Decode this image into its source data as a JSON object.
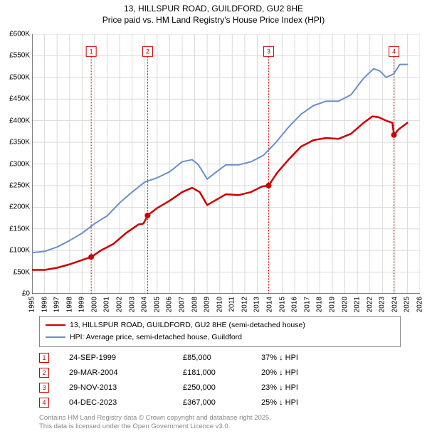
{
  "chart": {
    "type": "line",
    "title_line1": "13, HILLSPUR ROAD, GUILDFORD, GU2 8HE",
    "title_line2": "Price paid vs. HM Land Registry's House Price Index (HPI)",
    "title_fontsize": 12,
    "title_color": "#000000",
    "background_color": "#ffffff",
    "plot_bg": "#ffffff",
    "xlim": [
      1995,
      2026
    ],
    "ylim": [
      0,
      600000
    ],
    "xtick_step": 1,
    "ytick_step": 50000,
    "y_prefix": "£",
    "y_suffix": "K",
    "tick_fontsize": 10,
    "axis_color": "#000000",
    "grid_color": "#d9d9d9",
    "grid_width": 1,
    "series": [
      {
        "name": "price_paid",
        "label": "13, HILLSPUR ROAD, GUILDFORD, GU2 8HE (semi-detached house)",
        "color": "#cc0000",
        "width": 2.5,
        "data": [
          [
            1995.0,
            55000
          ],
          [
            1996.0,
            55000
          ],
          [
            1997.0,
            60000
          ],
          [
            1998.0,
            68000
          ],
          [
            1999.0,
            78000
          ],
          [
            1999.73,
            85000
          ],
          [
            2000.5,
            100000
          ],
          [
            2001.5,
            115000
          ],
          [
            2002.5,
            140000
          ],
          [
            2003.5,
            160000
          ],
          [
            2003.9,
            162000
          ],
          [
            2004.05,
            170000
          ],
          [
            2004.24,
            181000
          ],
          [
            2005.0,
            198000
          ],
          [
            2006.0,
            215000
          ],
          [
            2007.0,
            235000
          ],
          [
            2007.8,
            245000
          ],
          [
            2008.4,
            235000
          ],
          [
            2009.0,
            205000
          ],
          [
            2009.6,
            215000
          ],
          [
            2010.5,
            230000
          ],
          [
            2011.5,
            228000
          ],
          [
            2012.5,
            235000
          ],
          [
            2013.4,
            248000
          ],
          [
            2013.91,
            250000
          ],
          [
            2014.6,
            280000
          ],
          [
            2015.5,
            310000
          ],
          [
            2016.5,
            340000
          ],
          [
            2017.5,
            355000
          ],
          [
            2018.5,
            360000
          ],
          [
            2019.5,
            358000
          ],
          [
            2020.5,
            370000
          ],
          [
            2021.5,
            395000
          ],
          [
            2022.2,
            410000
          ],
          [
            2022.7,
            408000
          ],
          [
            2023.3,
            400000
          ],
          [
            2023.8,
            395000
          ],
          [
            2023.93,
            367000
          ],
          [
            2024.3,
            380000
          ],
          [
            2025.0,
            395000
          ]
        ]
      },
      {
        "name": "hpi",
        "label": "HPI: Average price, semi-detached house, Guildford",
        "color": "#6b8fc9",
        "width": 2,
        "data": [
          [
            1995.0,
            95000
          ],
          [
            1996.0,
            98000
          ],
          [
            1997.0,
            108000
          ],
          [
            1998.0,
            123000
          ],
          [
            1999.0,
            140000
          ],
          [
            2000.0,
            162000
          ],
          [
            2001.0,
            180000
          ],
          [
            2002.0,
            210000
          ],
          [
            2003.0,
            235000
          ],
          [
            2004.0,
            258000
          ],
          [
            2005.0,
            268000
          ],
          [
            2006.0,
            282000
          ],
          [
            2007.0,
            305000
          ],
          [
            2007.8,
            310000
          ],
          [
            2008.3,
            298000
          ],
          [
            2009.0,
            265000
          ],
          [
            2009.8,
            283000
          ],
          [
            2010.5,
            298000
          ],
          [
            2011.5,
            298000
          ],
          [
            2012.5,
            305000
          ],
          [
            2013.5,
            320000
          ],
          [
            2014.5,
            350000
          ],
          [
            2015.5,
            385000
          ],
          [
            2016.5,
            415000
          ],
          [
            2017.5,
            435000
          ],
          [
            2018.5,
            445000
          ],
          [
            2019.5,
            445000
          ],
          [
            2020.5,
            460000
          ],
          [
            2021.5,
            498000
          ],
          [
            2022.3,
            520000
          ],
          [
            2022.8,
            515000
          ],
          [
            2023.3,
            500000
          ],
          [
            2023.9,
            508000
          ],
          [
            2024.4,
            530000
          ],
          [
            2025.0,
            530000
          ]
        ]
      }
    ],
    "markers": [
      {
        "n": "1",
        "x": 1999.73,
        "y": 85000,
        "color": "#cc0000"
      },
      {
        "n": "2",
        "x": 2004.24,
        "y": 181000,
        "color": "#cc0000"
      },
      {
        "n": "3",
        "x": 2013.91,
        "y": 250000,
        "color": "#cc0000"
      },
      {
        "n": "4",
        "x": 2023.93,
        "y": 367000,
        "color": "#cc0000"
      }
    ],
    "marker_flag_y": 560000,
    "marker_box_size": 14,
    "marker_box_border": "#cc0000",
    "marker_box_bg": "#ffffff",
    "marker_line_color": "#cc0000",
    "marker_line_dash": "2,2",
    "marker_dot_radius": 4
  },
  "legend": {
    "border_color": "#888888",
    "bg": "#ffffff",
    "fontsize": 10.5,
    "items": [
      {
        "color": "#cc0000",
        "label": "13, HILLSPUR ROAD, GUILDFORD, GU2 8HE (semi-detached house)"
      },
      {
        "color": "#6b8fc9",
        "label": "HPI: Average price, semi-detached house, Guildford"
      }
    ]
  },
  "transactions": {
    "marker_border": "#cc0000",
    "marker_text_color": "#cc0000",
    "fontsize": 11,
    "rows": [
      {
        "n": "1",
        "date": "24-SEP-1999",
        "price": "£85,000",
        "diff": "37% ↓ HPI"
      },
      {
        "n": "2",
        "date": "29-MAR-2004",
        "price": "£181,000",
        "diff": "20% ↓ HPI"
      },
      {
        "n": "3",
        "date": "29-NOV-2013",
        "price": "£250,000",
        "diff": "23% ↓ HPI"
      },
      {
        "n": "4",
        "date": "04-DEC-2023",
        "price": "£367,000",
        "diff": "25% ↓ HPI"
      }
    ]
  },
  "attribution": {
    "color": "#888888",
    "fontsize": 9.5,
    "line1": "Contains HM Land Registry data © Crown copyright and database right 2025.",
    "line2": "This data is licensed under the Open Government Licence v3.0."
  }
}
